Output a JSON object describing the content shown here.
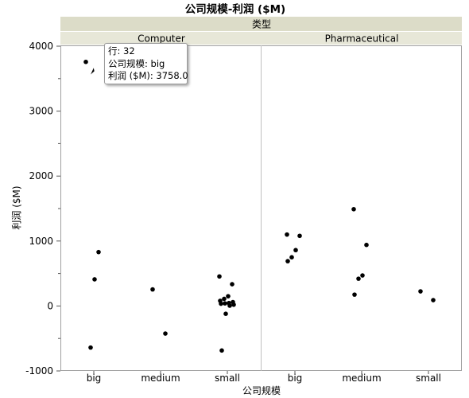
{
  "chart_data": {
    "type": "scatter",
    "title": "公司规模-利润 ($M)",
    "group_header": "类型",
    "panels": [
      {
        "name": "Computer",
        "categories": [
          "big",
          "medium",
          "small"
        ],
        "points": [
          {
            "category": "big",
            "y": 3758
          },
          {
            "category": "big",
            "y": 830
          },
          {
            "category": "big",
            "y": 410
          },
          {
            "category": "big",
            "y": -640
          },
          {
            "category": "medium",
            "y": 255
          },
          {
            "category": "medium",
            "y": -425
          },
          {
            "category": "small",
            "y": 455
          },
          {
            "category": "small",
            "y": 335
          },
          {
            "category": "small",
            "y": 150
          },
          {
            "category": "small",
            "y": 110
          },
          {
            "category": "small",
            "y": 80
          },
          {
            "category": "small",
            "y": 60
          },
          {
            "category": "small",
            "y": 45
          },
          {
            "category": "small",
            "y": 40
          },
          {
            "category": "small",
            "y": 35
          },
          {
            "category": "small",
            "y": 20
          },
          {
            "category": "small",
            "y": 5
          },
          {
            "category": "small",
            "y": -120
          },
          {
            "category": "small",
            "y": -685
          }
        ]
      },
      {
        "name": "Pharmaceutical",
        "categories": [
          "big",
          "medium",
          "small"
        ],
        "points": [
          {
            "category": "big",
            "y": 1100
          },
          {
            "category": "big",
            "y": 1080
          },
          {
            "category": "big",
            "y": 860
          },
          {
            "category": "big",
            "y": 750
          },
          {
            "category": "big",
            "y": 690
          },
          {
            "category": "medium",
            "y": 1490
          },
          {
            "category": "medium",
            "y": 940
          },
          {
            "category": "medium",
            "y": 470
          },
          {
            "category": "medium",
            "y": 420
          },
          {
            "category": "medium",
            "y": 175
          },
          {
            "category": "small",
            "y": 225
          },
          {
            "category": "small",
            "y": 90
          }
        ]
      }
    ],
    "xlabel": "公司规模",
    "ylabel": "利润 ($M)",
    "ylim": [
      -1000,
      4000
    ],
    "yticks": [
      -1000,
      0,
      1000,
      2000,
      3000,
      4000
    ],
    "grid": false,
    "tooltip": {
      "line1": "行: 32",
      "line2": "公司规模: big",
      "line3": "利润 ($M): 3758.0"
    },
    "colors": {
      "header_bg": "#dcdcc8",
      "subheader_bg": "#e7e7d8",
      "point": "#000000"
    }
  }
}
